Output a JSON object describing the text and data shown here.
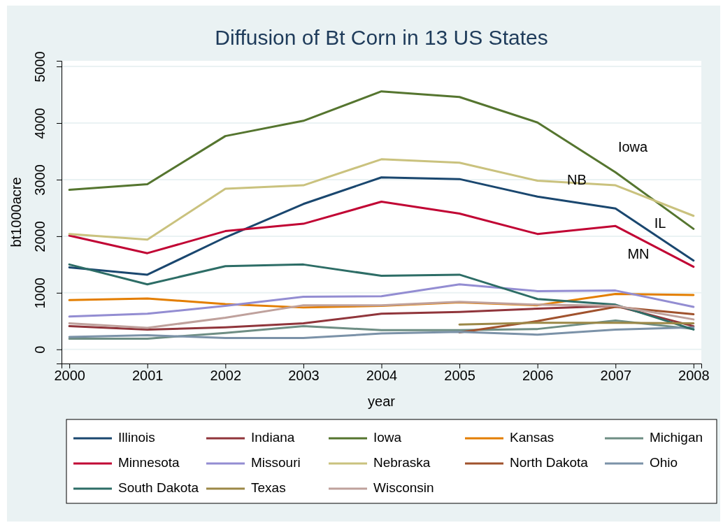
{
  "chart_data": {
    "type": "line",
    "title": "Diffusion of Bt Corn in 13 US States",
    "xlabel": "year",
    "ylabel": "bt1000acre",
    "x": [
      2000,
      2001,
      2002,
      2003,
      2004,
      2005,
      2006,
      2007,
      2008
    ],
    "xlim": [
      1999.9,
      2008.1
    ],
    "xticks": [
      2000,
      2001,
      2002,
      2003,
      2004,
      2005,
      2006,
      2007,
      2008
    ],
    "ylim": [
      -250,
      5100
    ],
    "yticks": [
      0,
      1000,
      2000,
      3000,
      4000,
      5000
    ],
    "grid": "y",
    "legend": "bottom",
    "series": [
      {
        "name": "Illinois",
        "color": "#1a476f",
        "values": [
          1450,
          1320,
          1980,
          2570,
          3040,
          3010,
          2700,
          2490,
          1570
        ]
      },
      {
        "name": "Indiana",
        "color": "#90353b",
        "values": [
          410,
          350,
          390,
          460,
          630,
          660,
          720,
          770,
          410
        ]
      },
      {
        "name": "Iowa",
        "color": "#55752f",
        "values": [
          2820,
          2920,
          3770,
          4040,
          4560,
          4460,
          4010,
          3130,
          2130
        ]
      },
      {
        "name": "Kansas",
        "color": "#e37e00",
        "values": [
          870,
          900,
          800,
          740,
          770,
          830,
          780,
          980,
          960
        ]
      },
      {
        "name": "Michigan",
        "color": "#6e8e84",
        "values": [
          190,
          190,
          290,
          410,
          340,
          340,
          360,
          510,
          360
        ]
      },
      {
        "name": "Minnesota",
        "color": "#c10534",
        "values": [
          2010,
          1700,
          2090,
          2220,
          2610,
          2400,
          2040,
          2180,
          1460
        ]
      },
      {
        "name": "Missouri",
        "color": "#938dd2",
        "values": [
          580,
          630,
          770,
          930,
          940,
          1150,
          1030,
          1040,
          750
        ]
      },
      {
        "name": "Nebraska",
        "color": "#cac27e",
        "values": [
          2040,
          1940,
          2840,
          2900,
          3360,
          3300,
          2980,
          2900,
          2360
        ]
      },
      {
        "name": "North Dakota",
        "color": "#a0522d",
        "values": [
          null,
          null,
          null,
          null,
          null,
          300,
          500,
          750,
          620
        ]
      },
      {
        "name": "Ohio",
        "color": "#7b92a8",
        "values": [
          220,
          250,
          200,
          200,
          280,
          310,
          260,
          350,
          390
        ]
      },
      {
        "name": "South Dakota",
        "color": "#2d6d66",
        "values": [
          1500,
          1150,
          1470,
          1500,
          1300,
          1320,
          890,
          790,
          350
        ]
      },
      {
        "name": "Texas",
        "color": "#9c8847",
        "values": [
          null,
          null,
          null,
          null,
          null,
          440,
          470,
          470,
          460
        ]
      },
      {
        "name": "Wisconsin",
        "color": "#bfa19c",
        "values": [
          460,
          380,
          560,
          780,
          780,
          840,
          790,
          770,
          530
        ]
      }
    ],
    "annotations": [
      "Iowa",
      "NB",
      "IL",
      "MN"
    ]
  }
}
